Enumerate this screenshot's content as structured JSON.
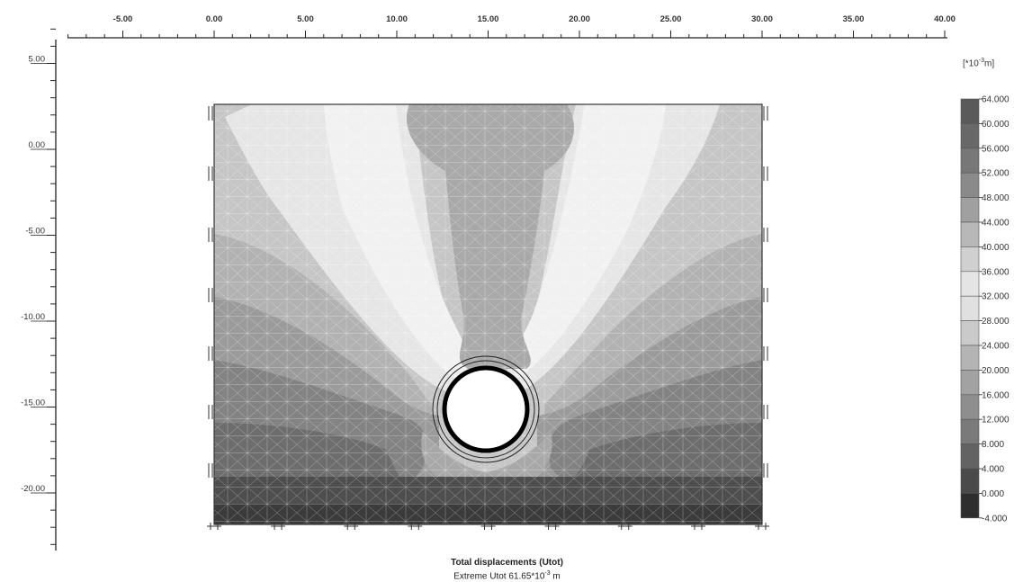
{
  "x_axis": {
    "tick_labels": [
      "-5.00",
      "0.00",
      "5.00",
      "10.00",
      "15.00",
      "20.00",
      "25.00",
      "30.00",
      "35.00",
      "40.00"
    ],
    "tick_values": [
      -5,
      0,
      5,
      10,
      15,
      20,
      25,
      30,
      35,
      40
    ]
  },
  "y_axis": {
    "tick_labels": [
      "5.00",
      "0.00",
      "-5.00",
      "-10.00",
      "-15.00",
      "-20.00"
    ],
    "tick_values": [
      5,
      0,
      -5,
      -10,
      -15,
      -20
    ]
  },
  "model": {
    "x_range": [
      0,
      30
    ],
    "y_range": [
      -23,
      2.5
    ],
    "tunnel_center": [
      15,
      -15.5
    ],
    "tunnel_radius": 2.4,
    "bottom_fixities_x": [
      0,
      3.5,
      7.5,
      11,
      15,
      18.5,
      22.5,
      26.5,
      30
    ]
  },
  "legend": {
    "unit_prefix": "[*10",
    "unit_exp": "-3",
    "unit_suffix": "m]",
    "values": [
      "64.000",
      "60.000",
      "56.000",
      "52.000",
      "48.000",
      "44.000",
      "40.000",
      "36.000",
      "32.000",
      "28.000",
      "24.000",
      "20.000",
      "16.000",
      "12.000",
      "8.000",
      "4.000",
      "0.000",
      "-4.000"
    ],
    "colors": [
      "#5a5a5a",
      "#686868",
      "#777777",
      "#8a8a8a",
      "#a0a0a0",
      "#b8b8b8",
      "#d0d0d0",
      "#e4e4e4",
      "#e0e0e0",
      "#cacaca",
      "#b4b4b4",
      "#a2a2a2",
      "#8e8e8e",
      "#7a7a7a",
      "#636363",
      "#4a4a4a",
      "#2e2e2e"
    ]
  },
  "caption": {
    "title": "Total displacements (Utot)",
    "sub_prefix": "Extreme Utot 61.65*10",
    "sub_exp": "-3",
    "sub_suffix": " m"
  }
}
